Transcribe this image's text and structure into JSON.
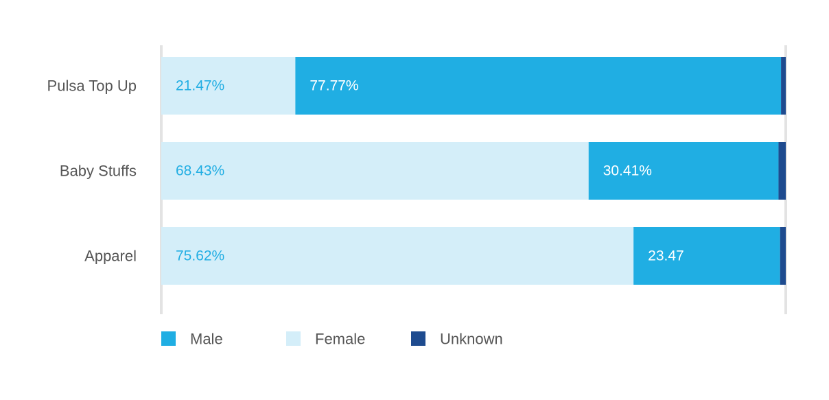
{
  "chart_data": {
    "type": "bar",
    "orientation": "horizontal",
    "stacked": true,
    "categories": [
      "Pulsa Top Up",
      "Baby Stuffs",
      "Apparel"
    ],
    "series": [
      {
        "name": "Female",
        "color": "#d4eef9",
        "label_color": "#22aee3",
        "values": [
          21.47,
          68.43,
          75.62
        ],
        "labels": [
          "21.47%",
          "68.43%",
          "75.62%"
        ]
      },
      {
        "name": "Male",
        "color": "#20aee3",
        "label_color": "#ffffff",
        "values": [
          77.77,
          30.41,
          23.47
        ],
        "labels": [
          "77.77%",
          "30.41%",
          "23.47"
        ]
      },
      {
        "name": "Unknown",
        "color": "#1e4b8f",
        "values": [
          0.76,
          1.16,
          0.91
        ]
      }
    ],
    "xlim": [
      0,
      100
    ],
    "grid": false,
    "legend": {
      "position": "bottom-left",
      "order": [
        "Male",
        "Female",
        "Unknown"
      ]
    }
  }
}
